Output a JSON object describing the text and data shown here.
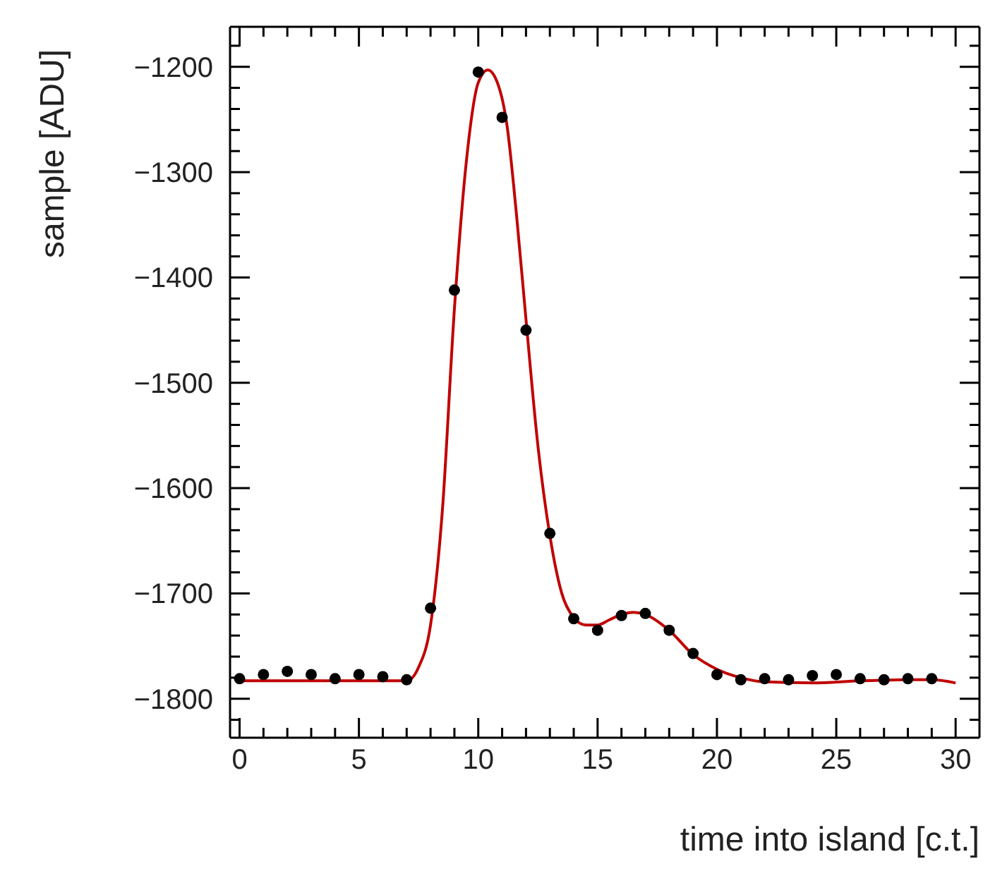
{
  "chart_data": {
    "type": "scatter",
    "xlabel": "time into island [c.t.]",
    "ylabel": "sample [ADU]",
    "xlim": [
      -0.4,
      31
    ],
    "ylim": [
      -1837,
      -1162
    ],
    "xticks": [
      0,
      {
        "value": 1,
        "label": null
      },
      {
        "value": 2,
        "label": null
      },
      {
        "value": 3,
        "label": null
      },
      {
        "value": 4,
        "label": null
      },
      5,
      {
        "value": 6,
        "label": null
      },
      {
        "value": 7,
        "label": null
      },
      {
        "value": 8,
        "label": null
      },
      {
        "value": 9,
        "label": null
      },
      10,
      {
        "value": 11,
        "label": null
      },
      {
        "value": 12,
        "label": null
      },
      {
        "value": 13,
        "label": null
      },
      {
        "value": 14,
        "label": null
      },
      15,
      {
        "value": 16,
        "label": null
      },
      {
        "value": 17,
        "label": null
      },
      {
        "value": 18,
        "label": null
      },
      {
        "value": 19,
        "label": null
      },
      20,
      {
        "value": 21,
        "label": null
      },
      {
        "value": 22,
        "label": null
      },
      {
        "value": 23,
        "label": null
      },
      {
        "value": 24,
        "label": null
      },
      25,
      {
        "value": 26,
        "label": null
      },
      {
        "value": 27,
        "label": null
      },
      {
        "value": 28,
        "label": null
      },
      {
        "value": 29,
        "label": null
      },
      30
    ],
    "yticks": [
      {
        "value": -1820,
        "label": null
      },
      {
        "value": -1800,
        "label": "−1800"
      },
      {
        "value": -1780,
        "label": null
      },
      {
        "value": -1760,
        "label": null
      },
      {
        "value": -1740,
        "label": null
      },
      {
        "value": -1720,
        "label": null
      },
      {
        "value": -1700,
        "label": "−1700"
      },
      {
        "value": -1680,
        "label": null
      },
      {
        "value": -1660,
        "label": null
      },
      {
        "value": -1640,
        "label": null
      },
      {
        "value": -1620,
        "label": null
      },
      {
        "value": -1600,
        "label": "−1600"
      },
      {
        "value": -1580,
        "label": null
      },
      {
        "value": -1560,
        "label": null
      },
      {
        "value": -1540,
        "label": null
      },
      {
        "value": -1520,
        "label": null
      },
      {
        "value": -1500,
        "label": "−1500"
      },
      {
        "value": -1480,
        "label": null
      },
      {
        "value": -1460,
        "label": null
      },
      {
        "value": -1440,
        "label": null
      },
      {
        "value": -1420,
        "label": null
      },
      {
        "value": -1400,
        "label": "−1400"
      },
      {
        "value": -1380,
        "label": null
      },
      {
        "value": -1360,
        "label": null
      },
      {
        "value": -1340,
        "label": null
      },
      {
        "value": -1320,
        "label": null
      },
      {
        "value": -1300,
        "label": "−1300"
      },
      {
        "value": -1280,
        "label": null
      },
      {
        "value": -1260,
        "label": null
      },
      {
        "value": -1240,
        "label": null
      },
      {
        "value": -1220,
        "label": null
      },
      {
        "value": -1200,
        "label": "−1200"
      },
      {
        "value": -1180,
        "label": null
      }
    ],
    "legend": false,
    "marker": "circle",
    "series": [
      {
        "color": "#000000",
        "x": [
          0,
          1,
          2,
          3,
          4,
          5,
          6,
          7,
          8,
          9,
          10,
          11,
          12,
          13,
          14,
          15,
          16,
          17,
          18,
          19,
          20,
          21,
          22,
          23,
          24,
          25,
          26,
          27,
          28,
          29
        ],
        "values": [
          -1781,
          -1777,
          -1774,
          -1777,
          -1781,
          -1777,
          -1779,
          -1782,
          -1714,
          -1412,
          -1205,
          -1248,
          -1450,
          -1643,
          -1724,
          -1735,
          -1721,
          -1719,
          -1735,
          -1757,
          -1777,
          -1782,
          -1781,
          -1782,
          -1778,
          -1777,
          -1781,
          -1782,
          -1781,
          -1781
        ]
      },
      {
        "type": "line",
        "color": "#c00000",
        "marker": "none",
        "line_style": "solid",
        "x": [
          0,
          7,
          7.5,
          8,
          8.5,
          9,
          9.5,
          10,
          10.4,
          10.8,
          11.2,
          11.6,
          12,
          12.5,
          13,
          13.5,
          14,
          14.5,
          15,
          15.5,
          16,
          16.5,
          17,
          18,
          19,
          20,
          21,
          22,
          24,
          26,
          28,
          29,
          30
        ],
        "values": [
          -1783,
          -1783,
          -1770,
          -1730,
          -1620,
          -1430,
          -1290,
          -1215,
          -1203,
          -1215,
          -1255,
          -1340,
          -1440,
          -1560,
          -1645,
          -1700,
          -1723,
          -1730,
          -1730,
          -1725,
          -1720,
          -1718,
          -1720,
          -1735,
          -1758,
          -1772,
          -1780,
          -1784,
          -1785,
          -1783,
          -1782,
          -1782,
          -1785
        ]
      }
    ]
  }
}
